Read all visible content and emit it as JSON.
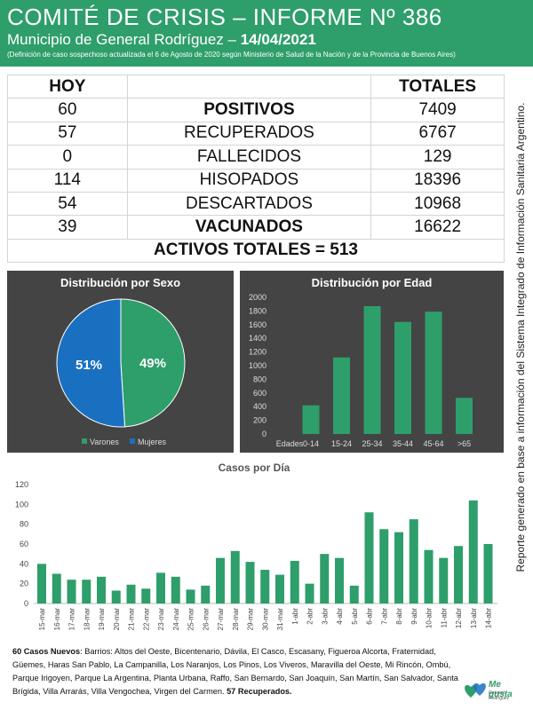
{
  "header": {
    "title": "COMITÉ DE CRISIS – INFORME Nº 386",
    "subtitle_prefix": "Municipio de General Rodríguez – ",
    "date": "14/04/2021",
    "definition": "(Definición de caso sospechoso actualizada el 6 de Agosto de 2020 según Ministerio de Salud de la Nación y de la Provincia de Buenos Aires)"
  },
  "side_note": "Reporte generado en base a información del Sistema Integrado de Información Sanitaria Argentino.",
  "stats": {
    "hoy_label": "HOY",
    "totales_label": "TOTALES",
    "rows": [
      {
        "hoy": "60",
        "label": "POSITIVOS",
        "total": "7409"
      },
      {
        "hoy": "57",
        "label": "RECUPERADOS",
        "total": "6767"
      },
      {
        "hoy": "0",
        "label": "FALLECIDOS",
        "total": "129"
      },
      {
        "hoy": "114",
        "label": "HISOPADOS",
        "total": "18396"
      },
      {
        "hoy": "54",
        "label": "DESCARTADOS",
        "total": "10968"
      },
      {
        "hoy": "39",
        "label": "VACUNADOS",
        "total": "16622"
      }
    ],
    "activos": "ACTIVOS TOTALES = 513"
  },
  "colors": {
    "green": "#2e9e6b",
    "blue": "#1a70c0",
    "orange": "#f0922b",
    "dark_panel": "#444444"
  },
  "chart_data": [
    {
      "type": "pie",
      "title": "Distribución por Sexo",
      "labels": [
        "Varones",
        "Mujeres"
      ],
      "values": [
        49,
        51
      ],
      "value_labels": [
        "49%",
        "51%"
      ],
      "colors": [
        "#2e9e6b",
        "#1a70c0"
      ],
      "legend": "bottom"
    },
    {
      "type": "bar",
      "title": "Distribución por Edad",
      "x_header": "Edades",
      "categories": [
        "0-14",
        "15-24",
        "25-34",
        "35-44",
        "45-64",
        ">65"
      ],
      "values": [
        420,
        1120,
        1870,
        1640,
        1790,
        530
      ],
      "ylim": [
        0,
        2000
      ],
      "yticks": [
        "0",
        "200",
        "400",
        "600",
        "800",
        "1000",
        "1200",
        "1400",
        "1600",
        "1800",
        "2000"
      ],
      "grid": false
    },
    {
      "type": "bar",
      "title": "Casos por Día",
      "categories": [
        "15-mar",
        "16-mar",
        "17-mar",
        "18-mar",
        "19-mar",
        "20-mar",
        "21-mar",
        "22-mar",
        "23-mar",
        "24-mar",
        "25-mar",
        "26-mar",
        "27-mar",
        "28-mar",
        "29-mar",
        "30-mar",
        "31-mar",
        "1-abr",
        "2-abr",
        "3-abr",
        "4-abr",
        "5-abr",
        "6-abr",
        "7-abr",
        "8-abr",
        "9-abr",
        "10-abr",
        "11-abr",
        "12-abr",
        "13-abr",
        "14-abr"
      ],
      "values": [
        40,
        30,
        24,
        24,
        27,
        13,
        19,
        15,
        31,
        27,
        14,
        18,
        46,
        53,
        42,
        34,
        29,
        43,
        20,
        50,
        46,
        18,
        92,
        75,
        72,
        85,
        54,
        46,
        58,
        104,
        60
      ],
      "ylim": [
        0,
        120
      ],
      "yticks": [
        "0",
        "20",
        "40",
        "60",
        "80",
        "100",
        "120"
      ],
      "grid": false
    }
  ],
  "notes": {
    "cases_bold": "60 Casos Nuevos",
    "cases_text": ": Barrios: Altos del Oeste, Bicentenario, Dávila, El Casco, Escasany, Figueroa Alcorta, Fraternidad, Güemes, Haras San Pablo, La Campanilla, Los Naranjos, Los Pinos, Los Viveros, Maravilla del Oeste, Mi Rincón, Ombú, Parque Irigoyen, Parque La Argentina, Planta Urbana, Raffo, San Bernardo, San Joaquín, San Martín, San Salvador, Santa Brígida, Villa Arrarás, Villa Vengochea, Virgen del Carmen. ",
    "recovered_bold": "57 Recuperados."
  },
  "logo": {
    "text": "Me gusta",
    "sub": "General Rodríguez"
  }
}
